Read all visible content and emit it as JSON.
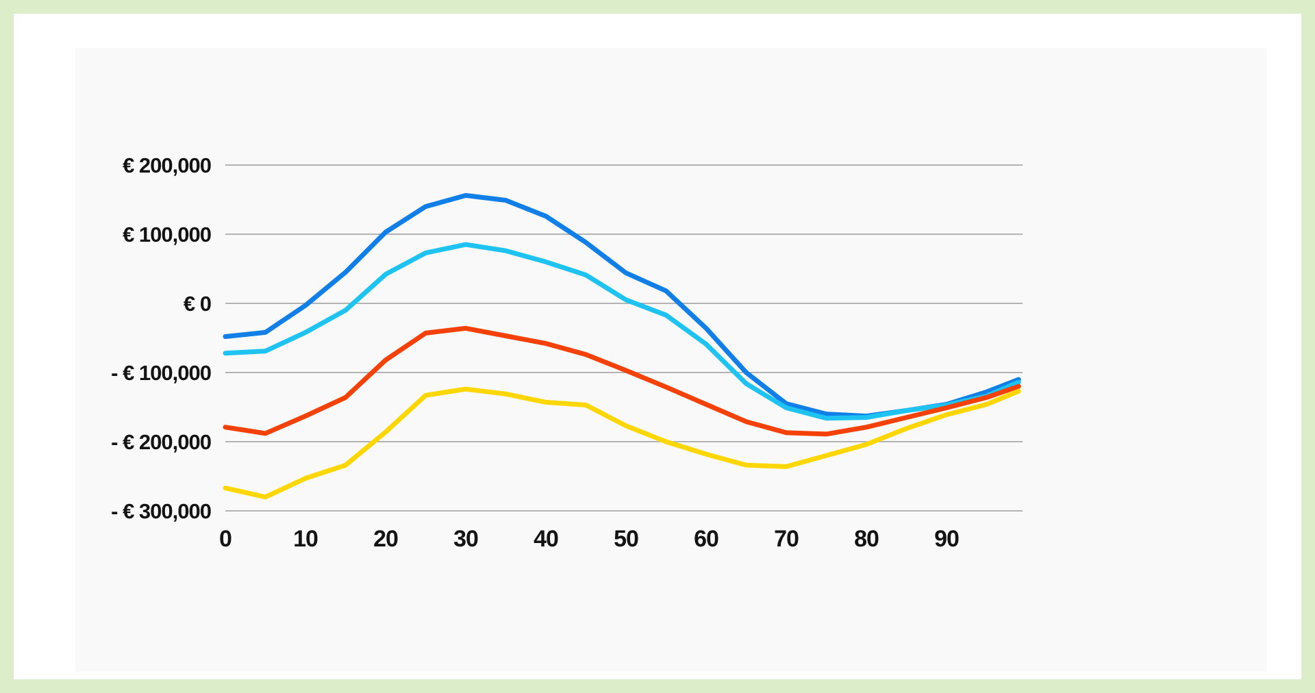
{
  "page": {
    "frame_color": "#dcedca",
    "page_background": "#ffffff",
    "panel_background": "#f9f9f9"
  },
  "chart_data": {
    "type": "line",
    "title": "",
    "xlabel": "",
    "ylabel": "",
    "currency": "EUR",
    "grid": true,
    "legend": "none",
    "grid_color": "#b3b3b3",
    "text_color": "#141414",
    "xlim": [
      0,
      99.5
    ],
    "ylim": [
      -300000,
      200000
    ],
    "x": [
      0,
      5,
      10,
      15,
      20,
      25,
      30,
      35,
      40,
      45,
      50,
      55,
      60,
      65,
      70,
      75,
      80,
      85,
      90,
      95,
      99
    ],
    "series": [
      {
        "name": "dark-blue",
        "color": "#107fe8",
        "values": [
          -48000,
          -42000,
          -3000,
          45000,
          103000,
          140000,
          156000,
          149000,
          126000,
          88000,
          44000,
          18000,
          -36000,
          -100000,
          -145000,
          -160000,
          -163000,
          -155000,
          -146000,
          -128000,
          -110000
        ]
      },
      {
        "name": "light-blue",
        "color": "#1ec3f2",
        "values": [
          -72000,
          -69000,
          -42000,
          -10000,
          42000,
          73000,
          85000,
          76000,
          60000,
          41000,
          5000,
          -17000,
          -59000,
          -116000,
          -151000,
          -166000,
          -165000,
          -155000,
          -147000,
          -134000,
          -114000
        ]
      },
      {
        "name": "red-orange",
        "color": "#f44108",
        "values": [
          -179000,
          -188000,
          -163000,
          -136000,
          -82000,
          -43000,
          -36000,
          -47000,
          -58000,
          -74000,
          -97000,
          -121000,
          -146000,
          -171000,
          -187000,
          -189000,
          -179000,
          -165000,
          -151000,
          -136000,
          -120000
        ]
      },
      {
        "name": "yellow",
        "color": "#fed702",
        "values": [
          -267000,
          -280000,
          -253000,
          -234000,
          -186000,
          -133000,
          -124000,
          -131000,
          -143000,
          -147000,
          -177000,
          -200000,
          -218000,
          -234000,
          -236000,
          -220000,
          -204000,
          -181000,
          -161000,
          -146000,
          -127000
        ]
      }
    ],
    "x_ticks": {
      "values": [
        0,
        10,
        20,
        30,
        40,
        50,
        60,
        70,
        80,
        90
      ],
      "labels": [
        "0",
        "10",
        "20",
        "30",
        "40",
        "50",
        "60",
        "70",
        "80",
        "90"
      ]
    },
    "y_ticks": {
      "values": [
        200000,
        100000,
        0,
        -100000,
        -200000,
        -300000
      ],
      "labels": [
        "€ 200,000",
        "€ 100,000",
        "€ 0",
        "- € 100,000",
        "- € 200,000",
        "- € 300,000"
      ]
    }
  }
}
